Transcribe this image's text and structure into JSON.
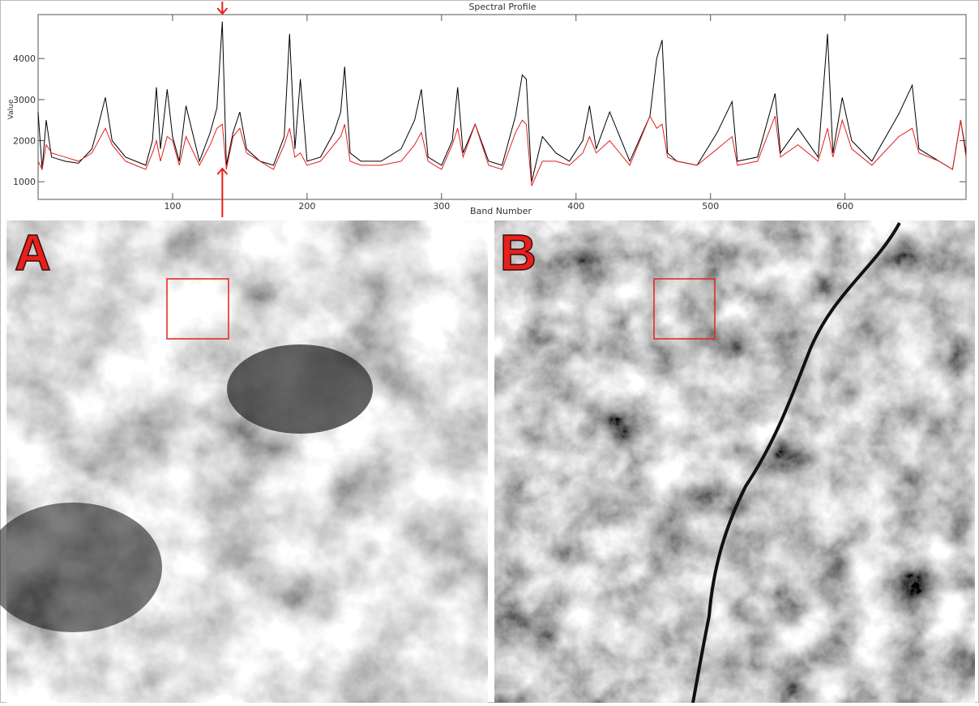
{
  "chart_data": {
    "type": "line",
    "title": "Spectral Profile",
    "x_label": "Band Number",
    "y_label": "Value",
    "x": [
      0,
      3,
      6,
      10,
      20,
      30,
      40,
      45,
      50,
      55,
      65,
      80,
      85,
      88,
      91,
      96,
      100,
      105,
      110,
      120,
      128,
      133,
      137,
      140,
      145,
      150,
      155,
      165,
      175,
      183,
      187,
      191,
      195,
      200,
      210,
      220,
      225,
      228,
      232,
      240,
      255,
      270,
      280,
      285,
      290,
      300,
      308,
      312,
      316,
      325,
      335,
      345,
      355,
      360,
      363,
      367,
      375,
      385,
      395,
      405,
      410,
      415,
      425,
      440,
      455,
      460,
      464,
      468,
      475,
      490,
      505,
      516,
      520,
      535,
      548,
      552,
      565,
      580,
      587,
      591,
      598,
      605,
      620,
      640,
      650,
      655,
      670,
      680,
      686,
      690
    ],
    "series": [
      {
        "color": "#000000",
        "values": [
          2700,
          1300,
          2500,
          1600,
          1500,
          1450,
          1800,
          2400,
          3050,
          2000,
          1600,
          1400,
          2000,
          3300,
          1800,
          3250,
          2100,
          1500,
          2850,
          1500,
          2200,
          2800,
          4900,
          1400,
          2200,
          2700,
          1800,
          1500,
          1400,
          2100,
          4600,
          1800,
          3500,
          1500,
          1600,
          2200,
          2700,
          3800,
          1700,
          1500,
          1500,
          1800,
          2500,
          3250,
          1600,
          1400,
          2000,
          3300,
          1700,
          2400,
          1500,
          1400,
          2600,
          3600,
          3500,
          1000,
          2100,
          1700,
          1500,
          2000,
          2850,
          1800,
          2700,
          1500,
          2600,
          4000,
          4450,
          1700,
          1500,
          1400,
          2200,
          2950,
          1500,
          1600,
          3150,
          1700,
          2300,
          1600,
          4600,
          1700,
          3050,
          2000,
          1500,
          2650,
          3350,
          1800,
          1500,
          1300,
          2500,
          1700
        ]
      },
      {
        "color": "#e02020",
        "values": [
          1500,
          1300,
          1900,
          1700,
          1600,
          1500,
          1700,
          2000,
          2300,
          1900,
          1500,
          1300,
          1700,
          2000,
          1500,
          2100,
          2000,
          1400,
          2100,
          1400,
          1900,
          2300,
          2400,
          1300,
          2100,
          2300,
          1700,
          1500,
          1300,
          1900,
          2300,
          1600,
          1700,
          1400,
          1500,
          1900,
          2100,
          2400,
          1500,
          1400,
          1400,
          1500,
          1900,
          2200,
          1500,
          1300,
          1900,
          2300,
          1600,
          2400,
          1400,
          1300,
          2200,
          2500,
          2400,
          900,
          1500,
          1500,
          1400,
          1700,
          2100,
          1700,
          2000,
          1400,
          2600,
          2300,
          2400,
          1600,
          1500,
          1400,
          1800,
          2100,
          1400,
          1500,
          2600,
          1600,
          1900,
          1500,
          2300,
          1600,
          2500,
          1800,
          1400,
          2100,
          2300,
          1700,
          1500,
          1300,
          2500,
          1600
        ]
      }
    ],
    "xlim": [
      0,
      690
    ],
    "ylim": [
      570,
      5070
    ],
    "xticks": [
      100,
      200,
      300,
      400,
      500,
      600
    ],
    "yticks": [
      1000,
      2000,
      3000,
      4000
    ]
  },
  "panels": [
    {
      "label": "A"
    },
    {
      "label": "B"
    }
  ]
}
